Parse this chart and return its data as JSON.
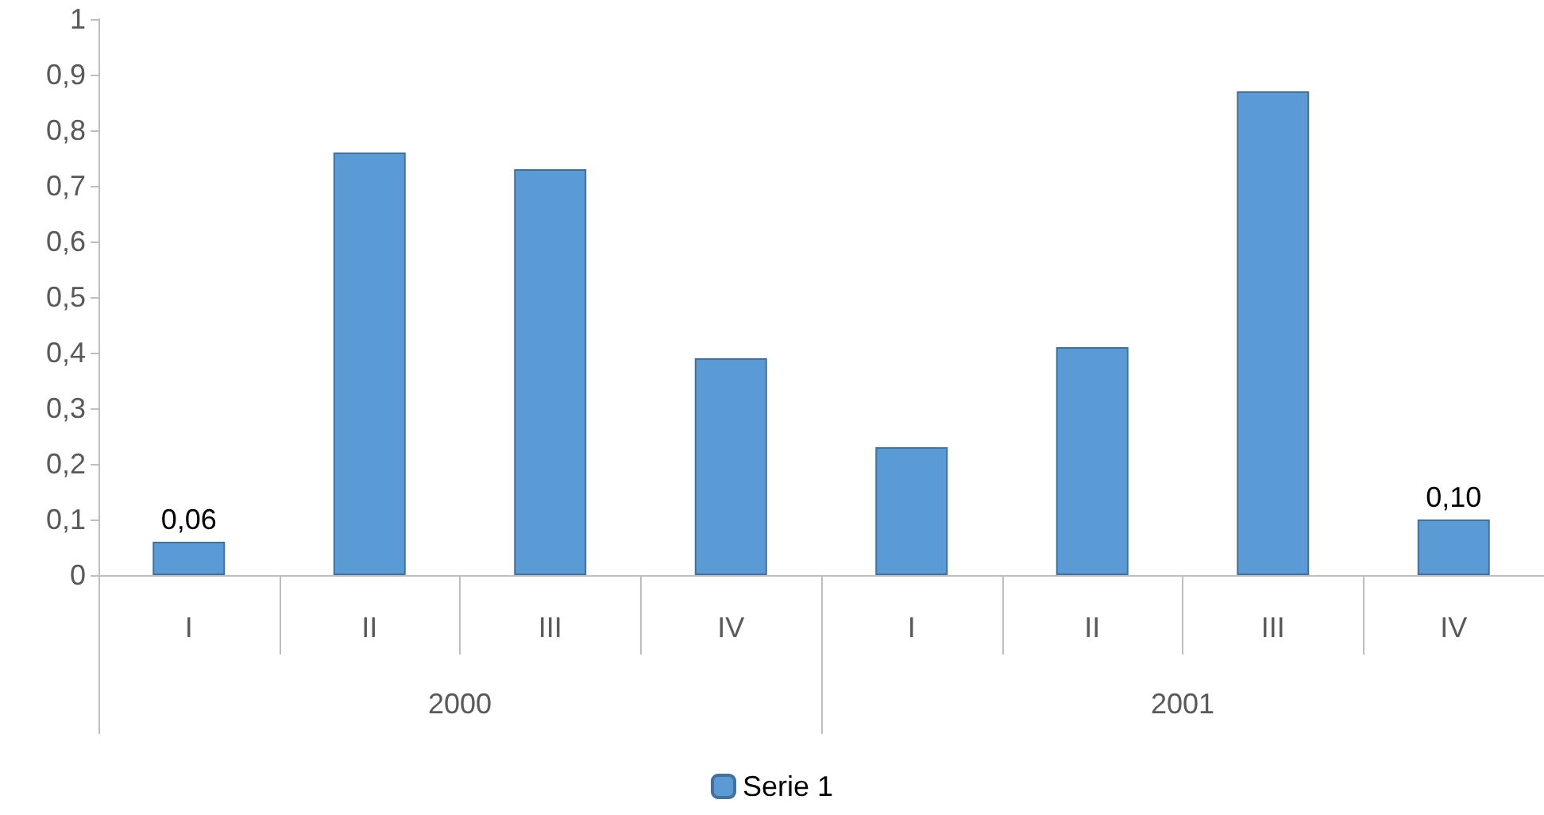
{
  "chart_data": {
    "type": "bar",
    "categories": [
      "I",
      "II",
      "III",
      "IV",
      "I",
      "II",
      "III",
      "IV"
    ],
    "annotations": [
      "2000",
      "2001"
    ],
    "series": [
      {
        "name": "Serie 1",
        "color": "#5b9bd5",
        "values": [
          0.06,
          0.76,
          0.73,
          0.39,
          0.23,
          0.41,
          0.87,
          0.1
        ],
        "value_labels": [
          "0,06",
          null,
          null,
          null,
          null,
          null,
          null,
          "0,10"
        ]
      }
    ],
    "ylim": [
      0,
      1
    ],
    "yticks": [
      0,
      {
        "value": 0.1,
        "label": "0,1"
      },
      {
        "value": 0.2,
        "label": "0,2"
      },
      {
        "value": 0.3,
        "label": "0,3"
      },
      {
        "value": 0.4,
        "label": "0,4"
      },
      {
        "value": 0.5,
        "label": "0,5"
      },
      {
        "value": 0.6,
        "label": "0,6"
      },
      {
        "value": 0.7,
        "label": "0,7"
      },
      {
        "value": 0.8,
        "label": "0,8"
      },
      {
        "value": 0.9,
        "label": "0,9"
      },
      1
    ],
    "grid": false,
    "legend": "bottom"
  }
}
